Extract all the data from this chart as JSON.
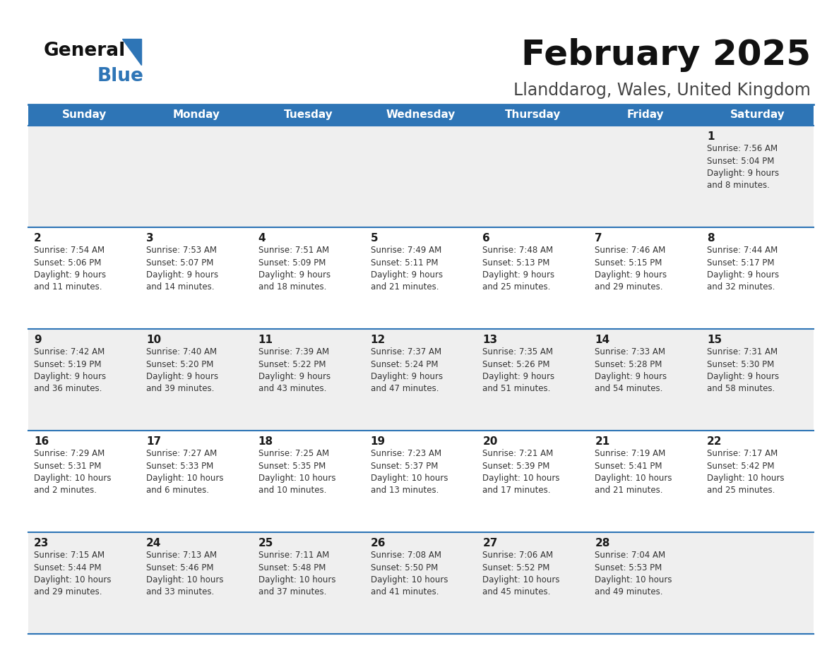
{
  "title": "February 2025",
  "subtitle": "Llanddarog, Wales, United Kingdom",
  "header_bg": "#2e75b6",
  "header_text": "#ffffff",
  "row_bg_odd": "#efefef",
  "row_bg_even": "#ffffff",
  "border_color": "#2e75b6",
  "text_color": "#333333",
  "day_number_color": "#1a1a1a",
  "day_headers": [
    "Sunday",
    "Monday",
    "Tuesday",
    "Wednesday",
    "Thursday",
    "Friday",
    "Saturday"
  ],
  "calendar": [
    [
      null,
      null,
      null,
      null,
      null,
      null,
      {
        "day": 1,
        "sunrise": "7:56 AM",
        "sunset": "5:04 PM",
        "daylight": "9 hours\nand 8 minutes."
      }
    ],
    [
      {
        "day": 2,
        "sunrise": "7:54 AM",
        "sunset": "5:06 PM",
        "daylight": "9 hours\nand 11 minutes."
      },
      {
        "day": 3,
        "sunrise": "7:53 AM",
        "sunset": "5:07 PM",
        "daylight": "9 hours\nand 14 minutes."
      },
      {
        "day": 4,
        "sunrise": "7:51 AM",
        "sunset": "5:09 PM",
        "daylight": "9 hours\nand 18 minutes."
      },
      {
        "day": 5,
        "sunrise": "7:49 AM",
        "sunset": "5:11 PM",
        "daylight": "9 hours\nand 21 minutes."
      },
      {
        "day": 6,
        "sunrise": "7:48 AM",
        "sunset": "5:13 PM",
        "daylight": "9 hours\nand 25 minutes."
      },
      {
        "day": 7,
        "sunrise": "7:46 AM",
        "sunset": "5:15 PM",
        "daylight": "9 hours\nand 29 minutes."
      },
      {
        "day": 8,
        "sunrise": "7:44 AM",
        "sunset": "5:17 PM",
        "daylight": "9 hours\nand 32 minutes."
      }
    ],
    [
      {
        "day": 9,
        "sunrise": "7:42 AM",
        "sunset": "5:19 PM",
        "daylight": "9 hours\nand 36 minutes."
      },
      {
        "day": 10,
        "sunrise": "7:40 AM",
        "sunset": "5:20 PM",
        "daylight": "9 hours\nand 39 minutes."
      },
      {
        "day": 11,
        "sunrise": "7:39 AM",
        "sunset": "5:22 PM",
        "daylight": "9 hours\nand 43 minutes."
      },
      {
        "day": 12,
        "sunrise": "7:37 AM",
        "sunset": "5:24 PM",
        "daylight": "9 hours\nand 47 minutes."
      },
      {
        "day": 13,
        "sunrise": "7:35 AM",
        "sunset": "5:26 PM",
        "daylight": "9 hours\nand 51 minutes."
      },
      {
        "day": 14,
        "sunrise": "7:33 AM",
        "sunset": "5:28 PM",
        "daylight": "9 hours\nand 54 minutes."
      },
      {
        "day": 15,
        "sunrise": "7:31 AM",
        "sunset": "5:30 PM",
        "daylight": "9 hours\nand 58 minutes."
      }
    ],
    [
      {
        "day": 16,
        "sunrise": "7:29 AM",
        "sunset": "5:31 PM",
        "daylight": "10 hours\nand 2 minutes."
      },
      {
        "day": 17,
        "sunrise": "7:27 AM",
        "sunset": "5:33 PM",
        "daylight": "10 hours\nand 6 minutes."
      },
      {
        "day": 18,
        "sunrise": "7:25 AM",
        "sunset": "5:35 PM",
        "daylight": "10 hours\nand 10 minutes."
      },
      {
        "day": 19,
        "sunrise": "7:23 AM",
        "sunset": "5:37 PM",
        "daylight": "10 hours\nand 13 minutes."
      },
      {
        "day": 20,
        "sunrise": "7:21 AM",
        "sunset": "5:39 PM",
        "daylight": "10 hours\nand 17 minutes."
      },
      {
        "day": 21,
        "sunrise": "7:19 AM",
        "sunset": "5:41 PM",
        "daylight": "10 hours\nand 21 minutes."
      },
      {
        "day": 22,
        "sunrise": "7:17 AM",
        "sunset": "5:42 PM",
        "daylight": "10 hours\nand 25 minutes."
      }
    ],
    [
      {
        "day": 23,
        "sunrise": "7:15 AM",
        "sunset": "5:44 PM",
        "daylight": "10 hours\nand 29 minutes."
      },
      {
        "day": 24,
        "sunrise": "7:13 AM",
        "sunset": "5:46 PM",
        "daylight": "10 hours\nand 33 minutes."
      },
      {
        "day": 25,
        "sunrise": "7:11 AM",
        "sunset": "5:48 PM",
        "daylight": "10 hours\nand 37 minutes."
      },
      {
        "day": 26,
        "sunrise": "7:08 AM",
        "sunset": "5:50 PM",
        "daylight": "10 hours\nand 41 minutes."
      },
      {
        "day": 27,
        "sunrise": "7:06 AM",
        "sunset": "5:52 PM",
        "daylight": "10 hours\nand 45 minutes."
      },
      {
        "day": 28,
        "sunrise": "7:04 AM",
        "sunset": "5:53 PM",
        "daylight": "10 hours\nand 49 minutes."
      },
      null
    ]
  ]
}
